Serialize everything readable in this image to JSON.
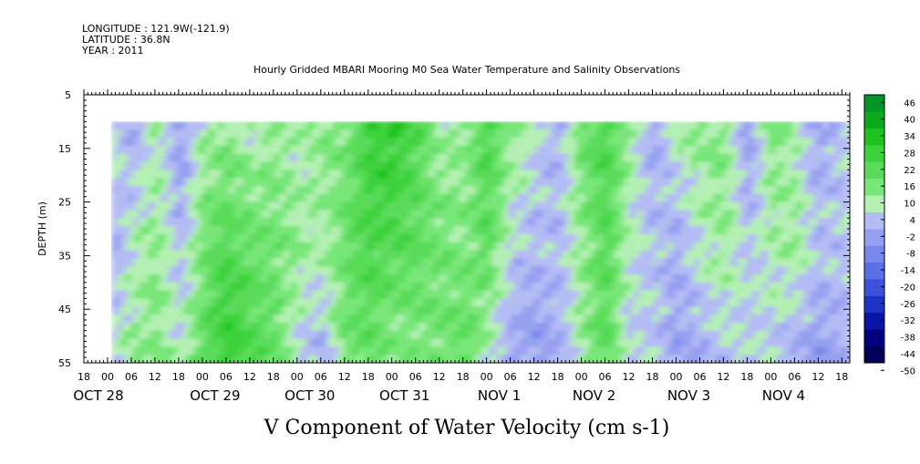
{
  "header": {
    "longitude": "LONGITUDE : 121.9W(-121.9)",
    "latitude": "LATITUDE : 36.8N",
    "year": "YEAR : 2011"
  },
  "chart_data": {
    "type": "heatmap",
    "title": "Hourly Gridded MBARI Mooring M0 Sea Water Temperature and Salinity Observations",
    "bottom_title": "V Component of Water Velocity (cm s-1)",
    "ylabel": "DEPTH (m)",
    "xlabel": "",
    "ylim": [
      55,
      5
    ],
    "y_ticks": [
      5,
      15,
      25,
      35,
      45,
      55
    ],
    "data_depth_range": [
      10,
      55
    ],
    "x_start": "2011-10-27T18:00",
    "x_end": "2011-11-04T20:00",
    "data_start": "2011-10-28T01:00",
    "hour_labels": [
      "18",
      "00",
      "06",
      "12",
      "18",
      "00",
      "06",
      "12",
      "18",
      "00",
      "06",
      "12",
      "18",
      "00",
      "06",
      "12",
      "18",
      "00",
      "06",
      "12",
      "18",
      "00",
      "06",
      "12",
      "18",
      "00",
      "06",
      "12",
      "18",
      "00",
      "06",
      "12",
      "18",
      "00",
      "06",
      "12",
      "18"
    ],
    "date_labels": [
      "OCT 28",
      "OCT 29",
      "OCT 30",
      "OCT 31",
      "NOV  1",
      "NOV  2",
      "NOV  3",
      "NOV  4"
    ],
    "colorbar": {
      "levels": [
        -50,
        -44,
        -38,
        -32,
        -26,
        -20,
        -14,
        -8,
        -2,
        4,
        10,
        16,
        22,
        28,
        34,
        40,
        46
      ],
      "labels": [
        "46",
        "40",
        "34",
        "28",
        "22",
        "16",
        "10",
        "4",
        "-2",
        "-8",
        "-14",
        "-20",
        "-26",
        "-32",
        "-38",
        "-44",
        "-50"
      ],
      "negative_colors": [
        "#00005a",
        "#000080",
        "#0a14a6",
        "#1e32c8",
        "#3c50dc",
        "#5a6ee6",
        "#7887ec",
        "#96a0f0",
        "#b4bcf4"
      ],
      "positive_colors": [
        "#b4f0b4",
        "#96eb96",
        "#78e678",
        "#5adc5a",
        "#3cd23c",
        "#1ec31e",
        "#0aaa1e",
        "#009628",
        "#007d23",
        "#006419",
        "#004b10"
      ]
    },
    "columns": [
      {
        "date": "2011-10-28T01:00",
        "v_mean": -2,
        "v_surface": 8,
        "v_bottom": 4
      },
      {
        "date": "2011-10-28T06:00",
        "v_mean": 6,
        "v_surface": -4,
        "v_bottom": 10
      },
      {
        "date": "2011-10-28T12:00",
        "v_mean": 10,
        "v_surface": 8,
        "v_bottom": 12
      },
      {
        "date": "2011-10-28T18:00",
        "v_mean": 0,
        "v_surface": -6,
        "v_bottom": 6
      },
      {
        "date": "2011-10-29T00:00",
        "v_mean": 14,
        "v_surface": 8,
        "v_bottom": 18
      },
      {
        "date": "2011-10-29T06:00",
        "v_mean": 20,
        "v_surface": 10,
        "v_bottom": 28
      },
      {
        "date": "2011-10-29T12:00",
        "v_mean": 16,
        "v_surface": 6,
        "v_bottom": 22
      },
      {
        "date": "2011-10-29T18:00",
        "v_mean": 14,
        "v_surface": 10,
        "v_bottom": 16
      },
      {
        "date": "2011-10-30T00:00",
        "v_mean": 10,
        "v_surface": 6,
        "v_bottom": 4
      },
      {
        "date": "2011-10-30T06:00",
        "v_mean": 8,
        "v_surface": 12,
        "v_bottom": -2
      },
      {
        "date": "2011-10-30T12:00",
        "v_mean": 16,
        "v_surface": 12,
        "v_bottom": 14
      },
      {
        "date": "2011-10-30T18:00",
        "v_mean": 22,
        "v_surface": 26,
        "v_bottom": 16
      },
      {
        "date": "2011-10-31T00:00",
        "v_mean": 20,
        "v_surface": 28,
        "v_bottom": 10
      },
      {
        "date": "2011-10-31T06:00",
        "v_mean": 18,
        "v_surface": 20,
        "v_bottom": 12
      },
      {
        "date": "2011-10-31T12:00",
        "v_mean": 14,
        "v_surface": 8,
        "v_bottom": 14
      },
      {
        "date": "2011-10-31T18:00",
        "v_mean": 12,
        "v_surface": 10,
        "v_bottom": 18
      },
      {
        "date": "2011-11-01T00:00",
        "v_mean": 18,
        "v_surface": 22,
        "v_bottom": 6
      },
      {
        "date": "2011-11-01T06:00",
        "v_mean": 4,
        "v_surface": 12,
        "v_bottom": -4
      },
      {
        "date": "2011-11-01T12:00",
        "v_mean": 0,
        "v_surface": 6,
        "v_bottom": -6
      },
      {
        "date": "2011-11-01T18:00",
        "v_mean": 2,
        "v_surface": -2,
        "v_bottom": -2
      },
      {
        "date": "2011-11-02T00:00",
        "v_mean": 10,
        "v_surface": 16,
        "v_bottom": 10
      },
      {
        "date": "2011-11-02T06:00",
        "v_mean": 20,
        "v_surface": 22,
        "v_bottom": 18
      },
      {
        "date": "2011-11-02T12:00",
        "v_mean": 6,
        "v_surface": 10,
        "v_bottom": 2
      },
      {
        "date": "2011-11-02T18:00",
        "v_mean": 2,
        "v_surface": -4,
        "v_bottom": 4
      },
      {
        "date": "2011-11-03T00:00",
        "v_mean": -2,
        "v_surface": 8,
        "v_bottom": -4
      },
      {
        "date": "2011-11-03T06:00",
        "v_mean": 6,
        "v_surface": 12,
        "v_bottom": -2
      },
      {
        "date": "2011-11-03T12:00",
        "v_mean": 10,
        "v_surface": 12,
        "v_bottom": 2
      },
      {
        "date": "2011-11-03T18:00",
        "v_mean": 2,
        "v_surface": -6,
        "v_bottom": 4
      },
      {
        "date": "2011-11-04T00:00",
        "v_mean": 8,
        "v_surface": 14,
        "v_bottom": 2
      },
      {
        "date": "2011-11-04T06:00",
        "v_mean": 10,
        "v_surface": 6,
        "v_bottom": -2
      },
      {
        "date": "2011-11-04T12:00",
        "v_mean": 2,
        "v_surface": -4,
        "v_bottom": -6
      },
      {
        "date": "2011-11-04T18:00",
        "v_mean": 2,
        "v_surface": 4,
        "v_bottom": -2
      }
    ]
  }
}
